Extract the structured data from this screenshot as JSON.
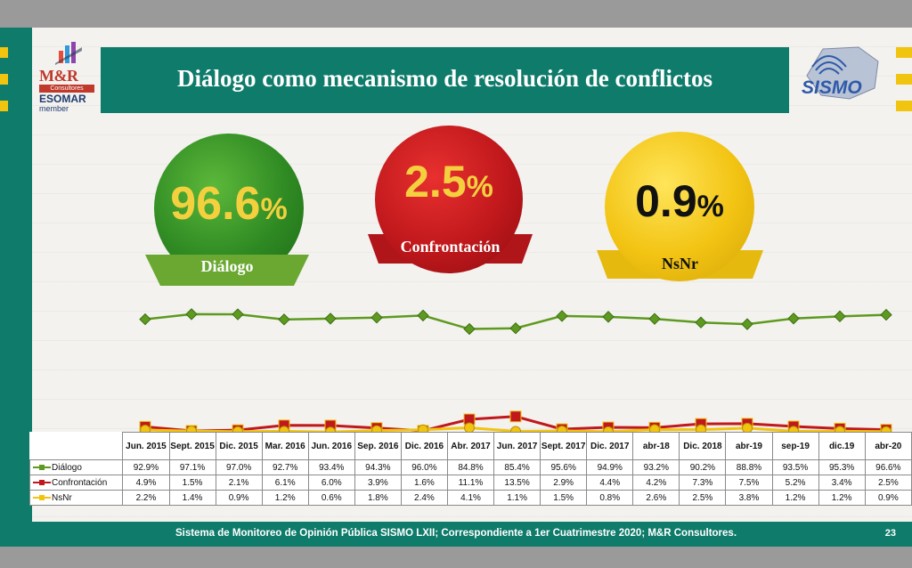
{
  "title": "Diálogo como mecanismo de resolución de conflictos",
  "logo": {
    "brand": "M&R",
    "sub": "Consultores",
    "org": "ESOMAR",
    "member": "member"
  },
  "sismo_logo": "SISMO",
  "kpis": [
    {
      "value": "96.6",
      "unit": "%",
      "label": "Diálogo",
      "color": "#3a8f2a"
    },
    {
      "value": "2.5",
      "unit": "%",
      "label": "Confrontación",
      "color": "#c0181c"
    },
    {
      "value": "0.9",
      "unit": "%",
      "label": "NsNr",
      "color": "#f1c40f"
    }
  ],
  "footer": "Sistema de Monitoreo de Opinión Pública SISMO LXII; Correspondiente a 1er Cuatrimestre 2020; M&R Consultores.",
  "page_number": "23",
  "chart_data": {
    "type": "line",
    "categories": [
      "Jun. 2015",
      "Sept. 2015",
      "Dic. 2015",
      "Mar. 2016",
      "Jun. 2016",
      "Sep. 2016",
      "Dic. 2016",
      "Abr. 2017",
      "Jun. 2017",
      "Sept. 2017",
      "Dic. 2017",
      "abr-18",
      "Dic. 2018",
      "abr-19",
      "sep-19",
      "dic.19",
      "abr-20"
    ],
    "series": [
      {
        "name": "Diálogo",
        "color": "#5e9a1f",
        "values": [
          92.9,
          97.1,
          97.0,
          92.7,
          93.4,
          94.3,
          96.0,
          84.8,
          85.4,
          95.6,
          94.9,
          93.2,
          90.2,
          88.8,
          93.5,
          95.3,
          96.6
        ],
        "labels": [
          "92.9%",
          "97.1%",
          "97.0%",
          "92.7%",
          "93.4%",
          "94.3%",
          "96.0%",
          "84.8%",
          "85.4%",
          "95.6%",
          "94.9%",
          "93.2%",
          "90.2%",
          "88.8%",
          "93.5%",
          "95.3%",
          "96.6%"
        ]
      },
      {
        "name": "Confrontación",
        "color": "#c0181c",
        "values": [
          4.9,
          1.5,
          2.1,
          6.1,
          6.0,
          3.9,
          1.6,
          11.1,
          13.5,
          2.9,
          4.4,
          4.2,
          7.3,
          7.5,
          5.2,
          3.4,
          2.5
        ],
        "labels": [
          "4.9%",
          "1.5%",
          "2.1%",
          "6.1%",
          "6.0%",
          "3.9%",
          "1.6%",
          "11.1%",
          "13.5%",
          "2.9%",
          "4.4%",
          "4.2%",
          "7.3%",
          "7.5%",
          "5.2%",
          "3.4%",
          "2.5%"
        ]
      },
      {
        "name": "NsNr",
        "color": "#f1c40f",
        "values": [
          2.2,
          1.4,
          0.9,
          1.2,
          0.6,
          1.8,
          2.4,
          4.1,
          1.1,
          1.5,
          0.8,
          2.6,
          2.5,
          3.8,
          1.2,
          1.2,
          0.9
        ],
        "labels": [
          "2.2%",
          "1.4%",
          "0.9%",
          "1.2%",
          "0.6%",
          "1.8%",
          "2.4%",
          "4.1%",
          "1.1%",
          "1.5%",
          "0.8%",
          "2.6%",
          "2.5%",
          "3.8%",
          "1.2%",
          "1.2%",
          "0.9%"
        ]
      }
    ]
  }
}
